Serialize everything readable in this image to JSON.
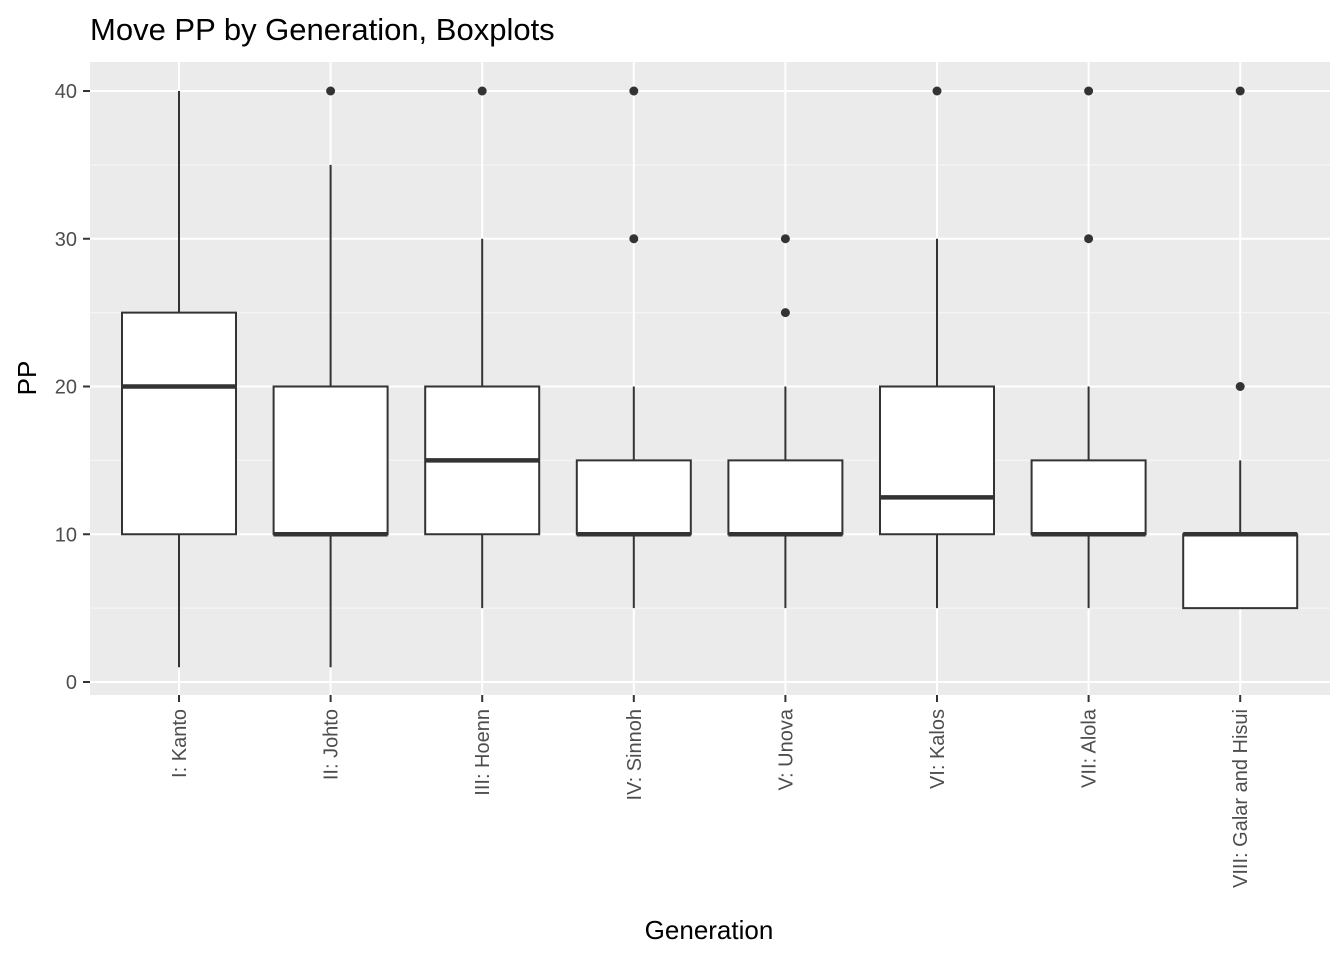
{
  "chart_data": {
    "type": "boxplot",
    "title": "Move PP by Generation, Boxplots",
    "xlabel": "Generation",
    "ylabel": "PP",
    "ylim": [
      -0.75,
      41.95
    ],
    "y_ticks": [
      0,
      10,
      20,
      30,
      40
    ],
    "y_minor_ticks": [
      5,
      15,
      25,
      35
    ],
    "grid": true,
    "legend": "none",
    "categories": [
      "I: Kanto",
      "II: Johto",
      "III: Hoenn",
      "IV: Sinnoh",
      "V: Unova",
      "VI: Kalos",
      "VII: Alola",
      "VIII: Galar and Hisui"
    ],
    "boxes": [
      {
        "category": "I: Kanto",
        "whisker_low": 1,
        "q1": 10,
        "median": 20,
        "q3": 25,
        "whisker_high": 40,
        "outliers": []
      },
      {
        "category": "II: Johto",
        "whisker_low": 1,
        "q1": 10,
        "median": 10,
        "q3": 20,
        "whisker_high": 35,
        "outliers": [
          40
        ]
      },
      {
        "category": "III: Hoenn",
        "whisker_low": 5,
        "q1": 10,
        "median": 15,
        "q3": 20,
        "whisker_high": 30,
        "outliers": [
          40
        ]
      },
      {
        "category": "IV: Sinnoh",
        "whisker_low": 5,
        "q1": 10,
        "median": 10,
        "q3": 15,
        "whisker_high": 20,
        "outliers": [
          30,
          40
        ]
      },
      {
        "category": "V: Unova",
        "whisker_low": 5,
        "q1": 10,
        "median": 10,
        "q3": 15,
        "whisker_high": 20,
        "outliers": [
          25,
          30
        ]
      },
      {
        "category": "VI: Kalos",
        "whisker_low": 5,
        "q1": 10,
        "median": 12.5,
        "q3": 20,
        "whisker_high": 30,
        "outliers": [
          40
        ]
      },
      {
        "category": "VII: Alola",
        "whisker_low": 5,
        "q1": 10,
        "median": 10,
        "q3": 15,
        "whisker_high": 20,
        "outliers": [
          30,
          40
        ]
      },
      {
        "category": "VIII: Galar and Hisui",
        "whisker_low": 5,
        "q1": 5,
        "median": 10,
        "q3": 10,
        "whisker_high": 15,
        "outliers": [
          20,
          40
        ]
      }
    ],
    "colors": {
      "panel_background": "#ebebeb",
      "grid_major": "#ffffff",
      "grid_minor": "#f5f5f5",
      "box_fill": "#ffffff",
      "box_line": "#333333",
      "tick": "#333333",
      "tick_label": "#4d4d4d"
    }
  }
}
